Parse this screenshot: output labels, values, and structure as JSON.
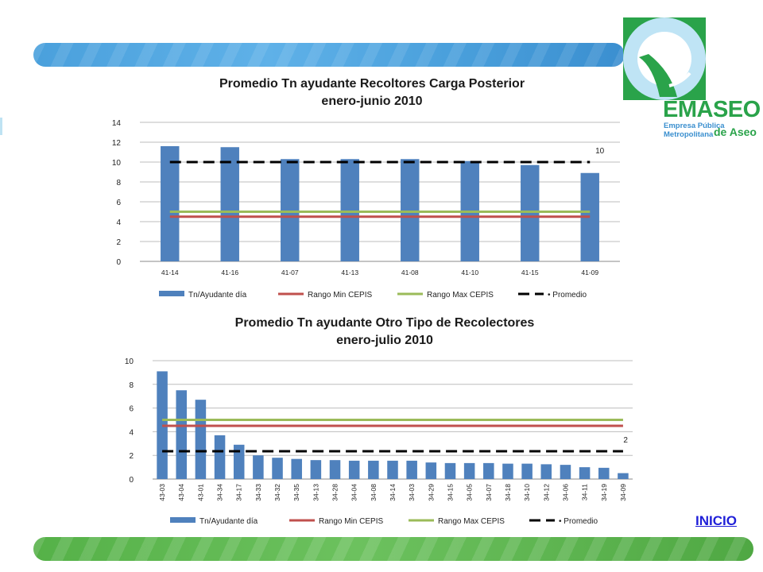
{
  "colors": {
    "bar": "#4f81bd",
    "min": "#c0504d",
    "max": "#9bbb59",
    "avg": "#000000",
    "brand_green": "#2aa34a",
    "brand_blue": "#3a8fcf",
    "link": "#1f1fd8"
  },
  "logo": {
    "brand": "EMASEO",
    "sub1": "Empresa Pública",
    "sub2": "Metropolitana",
    "sub3": "de Aseo",
    "icon": "emaseo-logo"
  },
  "link": {
    "label": "INICIO"
  },
  "chart_data": [
    {
      "type": "bar",
      "title": "Promedio Tn ayudante Recoltores Carga Posterior",
      "subtitle": "enero-junio 2010",
      "categories": [
        "41-14",
        "41-16",
        "41-07",
        "41-13",
        "41-08",
        "41-10",
        "41-15",
        "41-09"
      ],
      "series": [
        {
          "name": "Tn/Ayudante día",
          "kind": "bar",
          "values": [
            11.6,
            11.5,
            10.3,
            10.3,
            10.3,
            10.1,
            9.7,
            8.9
          ]
        },
        {
          "name": "Rango Min CEPIS",
          "kind": "line",
          "values": [
            4.5,
            4.5,
            4.5,
            4.5,
            4.5,
            4.5,
            4.5,
            4.5
          ]
        },
        {
          "name": "Rango Max CEPIS",
          "kind": "line",
          "values": [
            5,
            5,
            5,
            5,
            5,
            5,
            5,
            5
          ]
        },
        {
          "name": "Promedio",
          "kind": "dashed",
          "values": [
            10,
            10,
            10,
            10,
            10,
            10,
            10,
            10
          ]
        }
      ],
      "ylim": [
        0,
        14
      ],
      "yticks": [
        0,
        2,
        4,
        6,
        8,
        10,
        12,
        14
      ],
      "annotation": "10",
      "grid": true,
      "legend_position": "bottom"
    },
    {
      "type": "bar",
      "title": "Promedio Tn ayudante Otro Tipo de Recolectores",
      "subtitle": "enero-julio 2010",
      "categories": [
        "43-03",
        "43-04",
        "43-01",
        "34-34",
        "34-17",
        "34-33",
        "34-32",
        "34-35",
        "34-13",
        "34-28",
        "34-04",
        "34-08",
        "34-14",
        "34-03",
        "34-29",
        "34-15",
        "34-05",
        "34-07",
        "34-18",
        "34-10",
        "34-12",
        "34-06",
        "34-11",
        "34-19",
        "34-09"
      ],
      "series": [
        {
          "name": "Tn/Ayudante día",
          "kind": "bar",
          "values": [
            9.1,
            7.5,
            6.7,
            3.7,
            2.9,
            2.0,
            1.8,
            1.7,
            1.6,
            1.6,
            1.55,
            1.55,
            1.55,
            1.55,
            1.4,
            1.35,
            1.35,
            1.35,
            1.3,
            1.3,
            1.25,
            1.2,
            1.0,
            0.95,
            0.5
          ]
        },
        {
          "name": "Rango Min CEPIS",
          "kind": "line",
          "values": [
            4.5,
            4.5,
            4.5,
            4.5,
            4.5,
            4.5,
            4.5,
            4.5,
            4.5,
            4.5,
            4.5,
            4.5,
            4.5,
            4.5,
            4.5,
            4.5,
            4.5,
            4.5,
            4.5,
            4.5,
            4.5,
            4.5,
            4.5,
            4.5,
            4.5
          ]
        },
        {
          "name": "Rango Max CEPIS",
          "kind": "line",
          "values": [
            5,
            5,
            5,
            5,
            5,
            5,
            5,
            5,
            5,
            5,
            5,
            5,
            5,
            5,
            5,
            5,
            5,
            5,
            5,
            5,
            5,
            5,
            5,
            5,
            5
          ]
        },
        {
          "name": "Promedio",
          "kind": "dashed",
          "values": [
            2.35,
            2.35,
            2.35,
            2.35,
            2.35,
            2.35,
            2.35,
            2.35,
            2.35,
            2.35,
            2.35,
            2.35,
            2.35,
            2.35,
            2.35,
            2.35,
            2.35,
            2.35,
            2.35,
            2.35,
            2.35,
            2.35,
            2.35,
            2.35,
            2.35
          ]
        }
      ],
      "ylim": [
        0,
        10
      ],
      "yticks": [
        0,
        2,
        4,
        6,
        8,
        10
      ],
      "annotation": "2",
      "grid": true,
      "legend_position": "bottom"
    }
  ]
}
